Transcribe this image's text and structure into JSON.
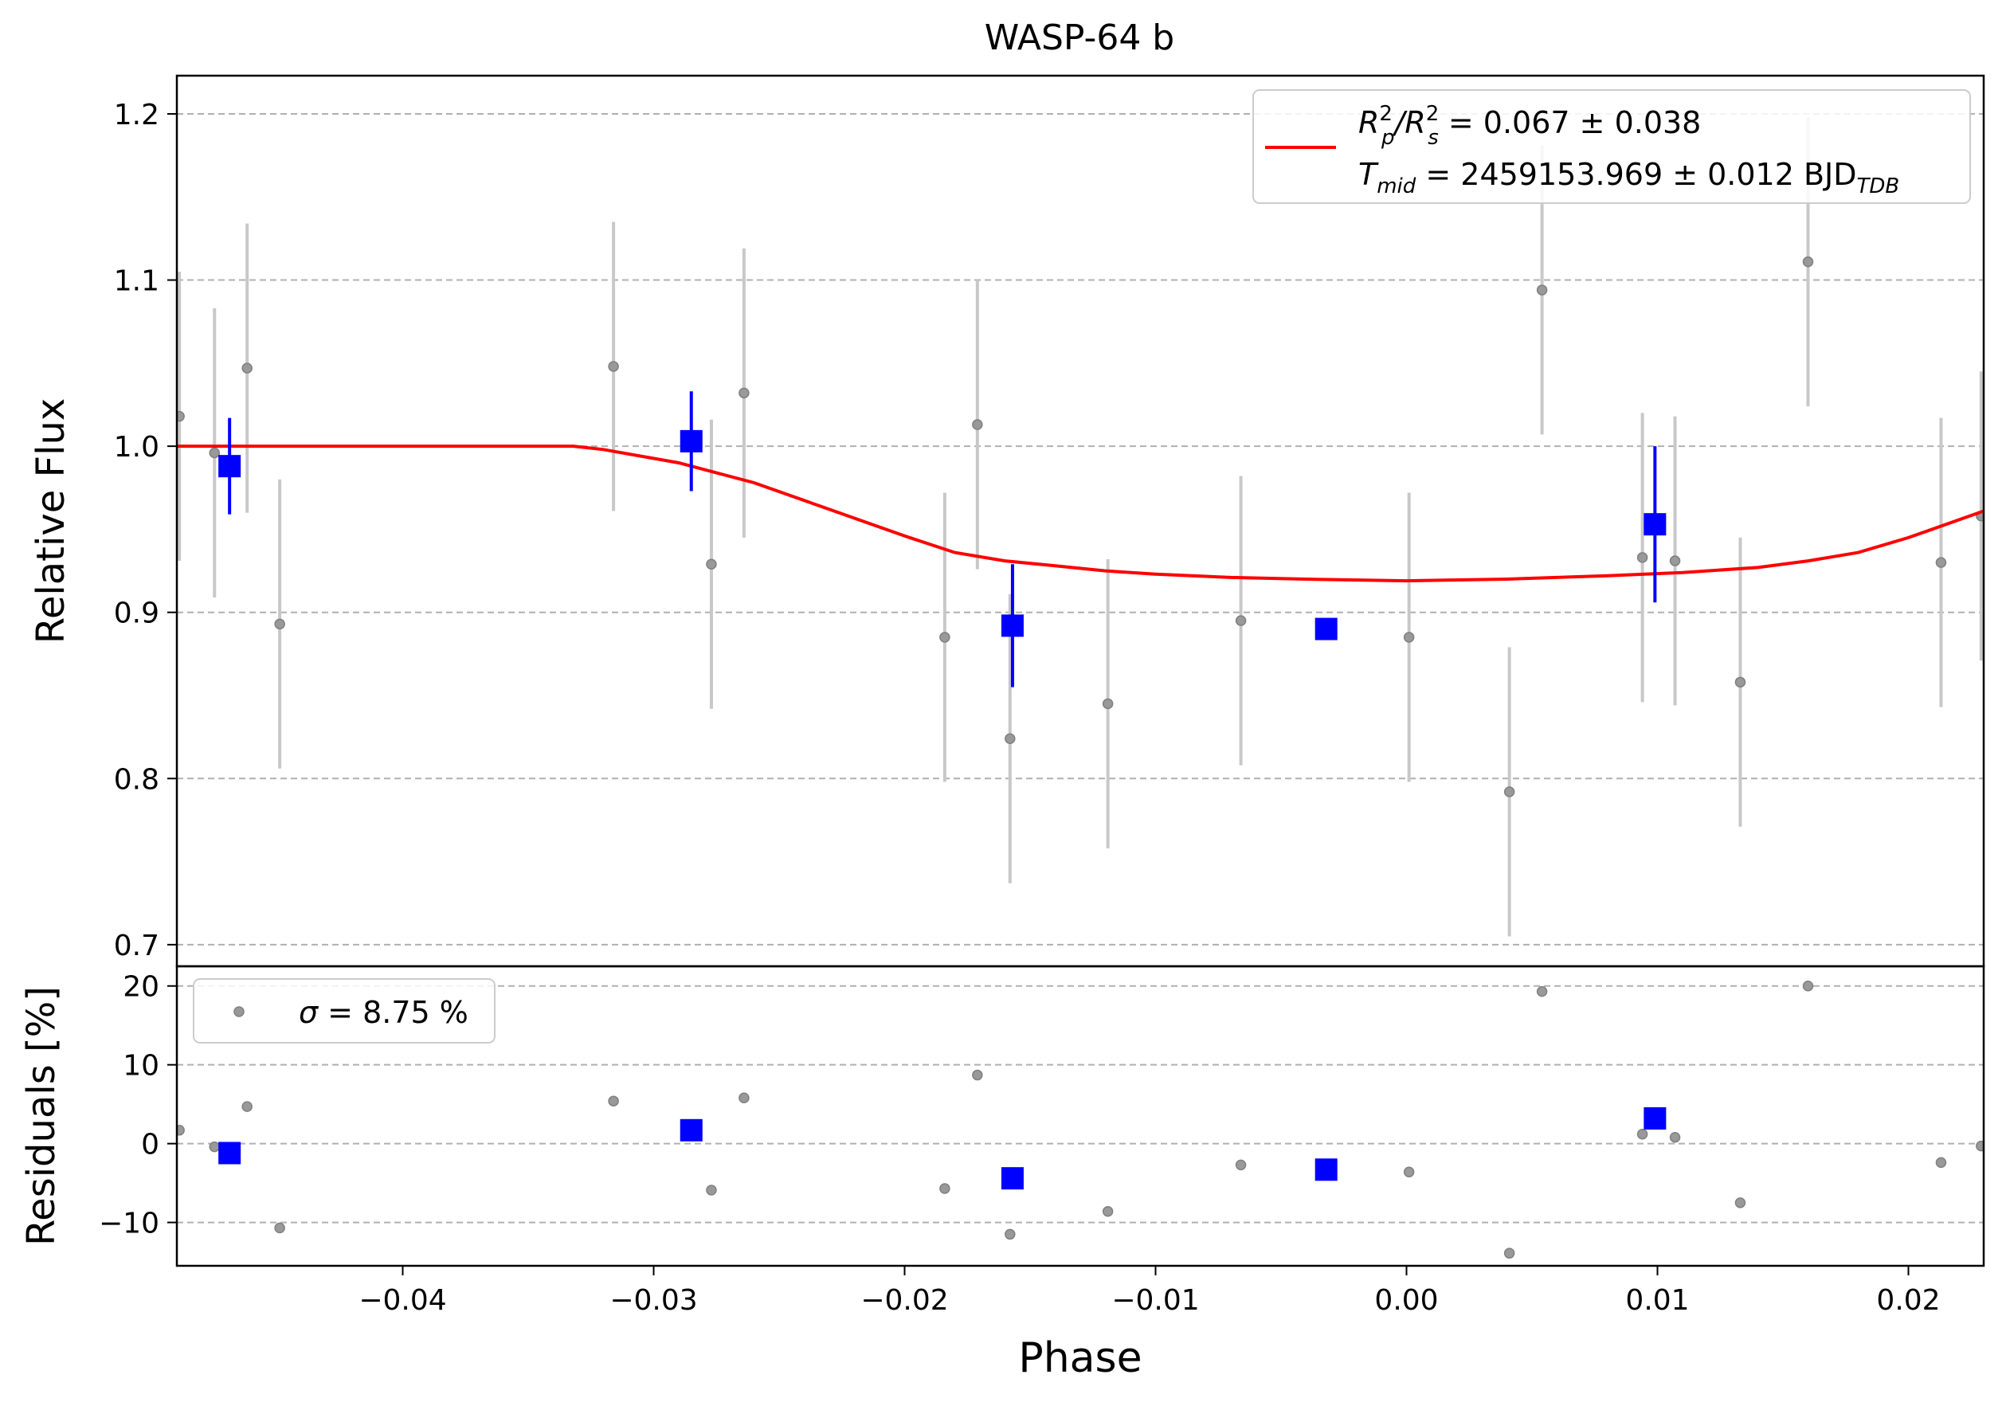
{
  "chart_data": [
    {
      "panel": "main",
      "type": "scatter",
      "title": "WASP-64 b",
      "xlabel": "",
      "ylabel": "Relative Flux",
      "xlim": [
        -0.049,
        0.023
      ],
      "ylim": [
        0.687,
        1.223
      ],
      "yticks": [
        0.7,
        0.8,
        0.9,
        1.0,
        1.1,
        1.2
      ],
      "ytick_labels": [
        "0.7",
        "0.8",
        "0.9",
        "1.0",
        "1.1",
        "1.2"
      ],
      "grid": "horizontal dashed",
      "legend": {
        "position": "top-right",
        "line1_prefix": "R",
        "line1_sup1": "2",
        "line1_sub1": "p",
        "line1_sep": "/R",
        "line1_sup2": "2",
        "line1_sub2": "s",
        "line1_value": " = 0.067 ± 0.038",
        "line2_prefix": "T",
        "line2_sub": "mid",
        "line2_value": " = 2459153.969 ± 0.012 BJD",
        "line2_unit_sub": "TDB"
      },
      "series": [
        {
          "kind": "data",
          "color": "#808080",
          "x": [
            -0.0489,
            -0.0475,
            -0.0462,
            -0.0449,
            -0.0316,
            -0.0277,
            -0.0264,
            -0.0184,
            -0.0171,
            -0.0158,
            -0.0119,
            -0.0066,
            0.0001,
            0.0041,
            0.0054,
            0.0094,
            0.0107,
            0.0133,
            0.016,
            0.0213,
            0.0229
          ],
          "y": [
            1.018,
            0.996,
            1.047,
            0.893,
            1.048,
            0.929,
            1.032,
            0.885,
            1.013,
            0.824,
            0.845,
            0.895,
            0.885,
            0.792,
            1.094,
            0.933,
            0.931,
            0.858,
            1.111,
            0.93,
            0.958
          ],
          "yerr": [
            0.087,
            0.087,
            0.087,
            0.087,
            0.087,
            0.087,
            0.087,
            0.087,
            0.087,
            0.087,
            0.087,
            0.087,
            0.087,
            0.087,
            0.087,
            0.087,
            0.087,
            0.087,
            0.087,
            0.087,
            0.087
          ]
        },
        {
          "kind": "binned",
          "color": "#0000ff",
          "x": [
            -0.0469,
            -0.0285,
            -0.0157,
            -0.0032,
            0.0099
          ],
          "y": [
            0.988,
            1.003,
            0.892,
            0.89,
            0.953
          ],
          "yerr": [
            0.029,
            0.03,
            0.037,
            0.0,
            0.047
          ]
        },
        {
          "kind": "model",
          "color": "#ff0000",
          "x": [
            -0.049,
            -0.0332,
            -0.032,
            -0.029,
            -0.026,
            -0.023,
            -0.02,
            -0.018,
            -0.016,
            -0.014,
            -0.012,
            -0.01,
            -0.007,
            -0.004,
            0.0,
            0.004,
            0.008,
            0.011,
            0.014,
            0.016,
            0.018,
            0.02,
            0.023
          ],
          "y": [
            1.0,
            1.0,
            0.998,
            0.99,
            0.978,
            0.962,
            0.946,
            0.936,
            0.931,
            0.928,
            0.925,
            0.923,
            0.921,
            0.92,
            0.919,
            0.92,
            0.922,
            0.924,
            0.927,
            0.931,
            0.936,
            0.945,
            0.961
          ]
        }
      ]
    },
    {
      "panel": "residuals",
      "type": "scatter",
      "xlabel": "Phase",
      "ylabel": "Residuals [%]",
      "xlim": [
        -0.049,
        0.023
      ],
      "ylim": [
        -15.5,
        22.5
      ],
      "yticks": [
        -10,
        0,
        10,
        20
      ],
      "ytick_labels": [
        "−10",
        "0",
        "10",
        "20"
      ],
      "xticks": [
        -0.04,
        -0.03,
        -0.02,
        -0.01,
        0.0,
        0.01,
        0.02
      ],
      "xtick_labels": [
        "−0.04",
        "−0.03",
        "−0.02",
        "−0.01",
        "0.00",
        "0.01",
        "0.02"
      ],
      "grid": "horizontal dashed",
      "legend": {
        "position": "top-left",
        "sigma_symbol": "σ",
        "sigma_text": " = 8.75 %"
      },
      "series": [
        {
          "kind": "data",
          "color": "#808080",
          "x": [
            -0.0489,
            -0.0475,
            -0.0462,
            -0.0449,
            -0.0316,
            -0.0277,
            -0.0264,
            -0.0184,
            -0.0171,
            -0.0158,
            -0.0119,
            -0.0066,
            0.0001,
            0.0041,
            0.0054,
            0.0094,
            0.0107,
            0.0133,
            0.016,
            0.0213,
            0.0229
          ],
          "y": [
            1.7,
            -0.4,
            4.7,
            -10.7,
            5.4,
            -5.9,
            5.8,
            -5.7,
            8.7,
            -11.5,
            -8.6,
            -2.7,
            -3.6,
            -13.9,
            19.3,
            1.2,
            0.8,
            -7.5,
            20.0,
            -2.4,
            -0.3
          ]
        },
        {
          "kind": "binned",
          "color": "#0000ff",
          "x": [
            -0.0469,
            -0.0285,
            -0.0157,
            -0.0032,
            0.0099
          ],
          "y": [
            -1.2,
            1.7,
            -4.4,
            -3.3,
            3.2
          ]
        }
      ]
    }
  ]
}
